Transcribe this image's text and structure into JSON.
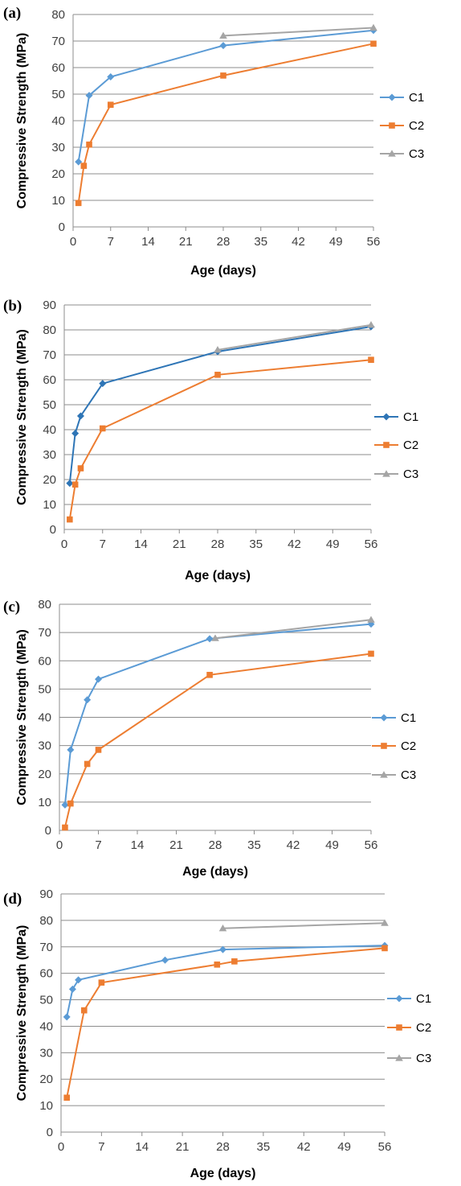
{
  "chart_data": [
    {
      "type": "line",
      "panel_label": "(a)",
      "xlabel": "Age (days)",
      "ylabel": "Compressive Strength (MPa)",
      "xlim": [
        0,
        56
      ],
      "ylim": [
        0,
        80
      ],
      "xticks": [
        0,
        7,
        14,
        21,
        28,
        35,
        42,
        49,
        56
      ],
      "yticks": [
        0,
        10,
        20,
        30,
        40,
        50,
        60,
        70,
        80
      ],
      "grid": "horizontal",
      "legend_position": "right",
      "series": [
        {
          "name": "C1",
          "color": "#5b9bd5",
          "marker": "diamond",
          "points": [
            [
              1,
              24.5
            ],
            [
              3,
              49.5
            ],
            [
              7,
              56.5
            ],
            [
              28,
              68.3
            ],
            [
              56,
              74
            ]
          ]
        },
        {
          "name": "C2",
          "color": "#ed7d31",
          "marker": "square",
          "points": [
            [
              1,
              9
            ],
            [
              2,
              23
            ],
            [
              3,
              31
            ],
            [
              7,
              46
            ],
            [
              28,
              57
            ],
            [
              56,
              69
            ]
          ]
        },
        {
          "name": "C3",
          "color": "#a5a5a5",
          "marker": "triangle",
          "points": [
            [
              28,
              72
            ],
            [
              56,
              75
            ]
          ]
        }
      ]
    },
    {
      "type": "line",
      "panel_label": "(b)",
      "xlabel": "Age (days)",
      "ylabel": "Compressive Strength (MPa)",
      "xlim": [
        0,
        56
      ],
      "ylim": [
        0,
        90
      ],
      "xticks": [
        0,
        7,
        14,
        21,
        28,
        35,
        42,
        49,
        56
      ],
      "yticks": [
        0,
        10,
        20,
        30,
        40,
        50,
        60,
        70,
        80,
        90
      ],
      "grid": "horizontal",
      "legend_position": "right",
      "series": [
        {
          "name": "C1",
          "color": "#2e75b6",
          "marker": "diamond",
          "points": [
            [
              1,
              18.5
            ],
            [
              2,
              38.5
            ],
            [
              3,
              45.5
            ],
            [
              7,
              58.5
            ],
            [
              28,
              71.3
            ],
            [
              56,
              81.3
            ]
          ]
        },
        {
          "name": "C2",
          "color": "#ed7d31",
          "marker": "square",
          "points": [
            [
              1,
              4
            ],
            [
              2,
              18
            ],
            [
              3,
              24.5
            ],
            [
              7,
              40.5
            ],
            [
              28,
              62
            ],
            [
              56,
              68
            ]
          ]
        },
        {
          "name": "C3",
          "color": "#a5a5a5",
          "marker": "triangle",
          "points": [
            [
              28,
              72
            ],
            [
              56,
              82
            ]
          ]
        }
      ]
    },
    {
      "type": "line",
      "panel_label": "(c)",
      "xlabel": "Age (days)",
      "ylabel": "Compressive Strength (MPa)",
      "xlim": [
        0,
        56
      ],
      "ylim": [
        0,
        80
      ],
      "xticks": [
        0,
        7,
        14,
        21,
        28,
        35,
        42,
        49,
        56
      ],
      "yticks": [
        0,
        10,
        20,
        30,
        40,
        50,
        60,
        70,
        80
      ],
      "grid": "horizontal",
      "legend_position": "right",
      "series": [
        {
          "name": "C1",
          "color": "#5b9bd5",
          "marker": "diamond",
          "points": [
            [
              1,
              9
            ],
            [
              2,
              28.5
            ],
            [
              5,
              46.2
            ],
            [
              7,
              53.5
            ],
            [
              27,
              67.8
            ],
            [
              56,
              73
            ]
          ]
        },
        {
          "name": "C2",
          "color": "#ed7d31",
          "marker": "square",
          "points": [
            [
              1,
              1
            ],
            [
              2,
              9.5
            ],
            [
              5,
              23.5
            ],
            [
              7,
              28.5
            ],
            [
              27,
              55
            ],
            [
              56,
              62.5
            ]
          ]
        },
        {
          "name": "C3",
          "color": "#a5a5a5",
          "marker": "triangle",
          "points": [
            [
              28,
              68
            ],
            [
              56,
              74.5
            ]
          ]
        }
      ]
    },
    {
      "type": "line",
      "panel_label": "(d)",
      "xlabel": "Age (days)",
      "ylabel": "Compressive Strength (MPa)",
      "xlim": [
        0,
        56
      ],
      "ylim": [
        0,
        90
      ],
      "xticks": [
        0,
        7,
        14,
        21,
        28,
        35,
        42,
        49,
        56
      ],
      "yticks": [
        0,
        10,
        20,
        30,
        40,
        50,
        60,
        70,
        80,
        90
      ],
      "grid": "horizontal",
      "legend_position": "right",
      "series": [
        {
          "name": "C1",
          "color": "#5b9bd5",
          "marker": "diamond",
          "points": [
            [
              1,
              43.5
            ],
            [
              2,
              54
            ],
            [
              3,
              57.5
            ],
            [
              18,
              65
            ],
            [
              28,
              69
            ],
            [
              56,
              70.5
            ]
          ]
        },
        {
          "name": "C2",
          "color": "#ed7d31",
          "marker": "square",
          "points": [
            [
              1,
              13
            ],
            [
              4,
              46
            ],
            [
              7,
              56.5
            ],
            [
              27,
              63.3
            ],
            [
              30,
              64.5
            ],
            [
              56,
              69.5
            ]
          ]
        },
        {
          "name": "C3",
          "color": "#a5a5a5",
          "marker": "triangle",
          "points": [
            [
              28,
              77
            ],
            [
              56,
              79
            ]
          ]
        }
      ]
    }
  ]
}
